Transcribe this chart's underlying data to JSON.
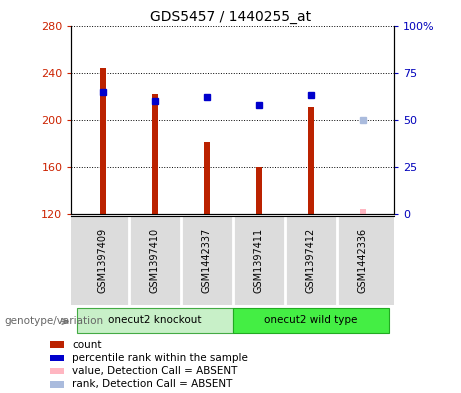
{
  "title": "GDS5457 / 1440255_at",
  "samples": [
    "GSM1397409",
    "GSM1397410",
    "GSM1442337",
    "GSM1397411",
    "GSM1397412",
    "GSM1442336"
  ],
  "bar_values": [
    244,
    222,
    181,
    160,
    211,
    124
  ],
  "bar_bottom": 120,
  "bar_color": "#BB2200",
  "absent_bar_color": "#FFB6C1",
  "dot_values_pct": [
    65,
    60,
    62,
    58,
    63,
    50
  ],
  "dot_color": "#0000CC",
  "absent_dot_color": "#AABBDD",
  "absent_flags": [
    false,
    false,
    false,
    false,
    false,
    true
  ],
  "ylim_left": [
    120,
    280
  ],
  "ylim_right": [
    0,
    100
  ],
  "yticks_left": [
    120,
    160,
    200,
    240,
    280
  ],
  "yticks_right": [
    0,
    25,
    50,
    75,
    100
  ],
  "left_color": "#CC2200",
  "right_color": "#0000BB",
  "bg_color": "#DCDCDC",
  "group1_color": "#C8F0C8",
  "group2_color": "#44EE44",
  "legend_items": [
    {
      "label": "count",
      "color": "#BB2200"
    },
    {
      "label": "percentile rank within the sample",
      "color": "#0000CC"
    },
    {
      "label": "value, Detection Call = ABSENT",
      "color": "#FFB6C1"
    },
    {
      "label": "rank, Detection Call = ABSENT",
      "color": "#AABBDD"
    }
  ],
  "group_label": "genotype/variation",
  "bar_width": 0.12,
  "title_fontsize": 10,
  "tick_fontsize": 8,
  "label_fontsize": 8
}
